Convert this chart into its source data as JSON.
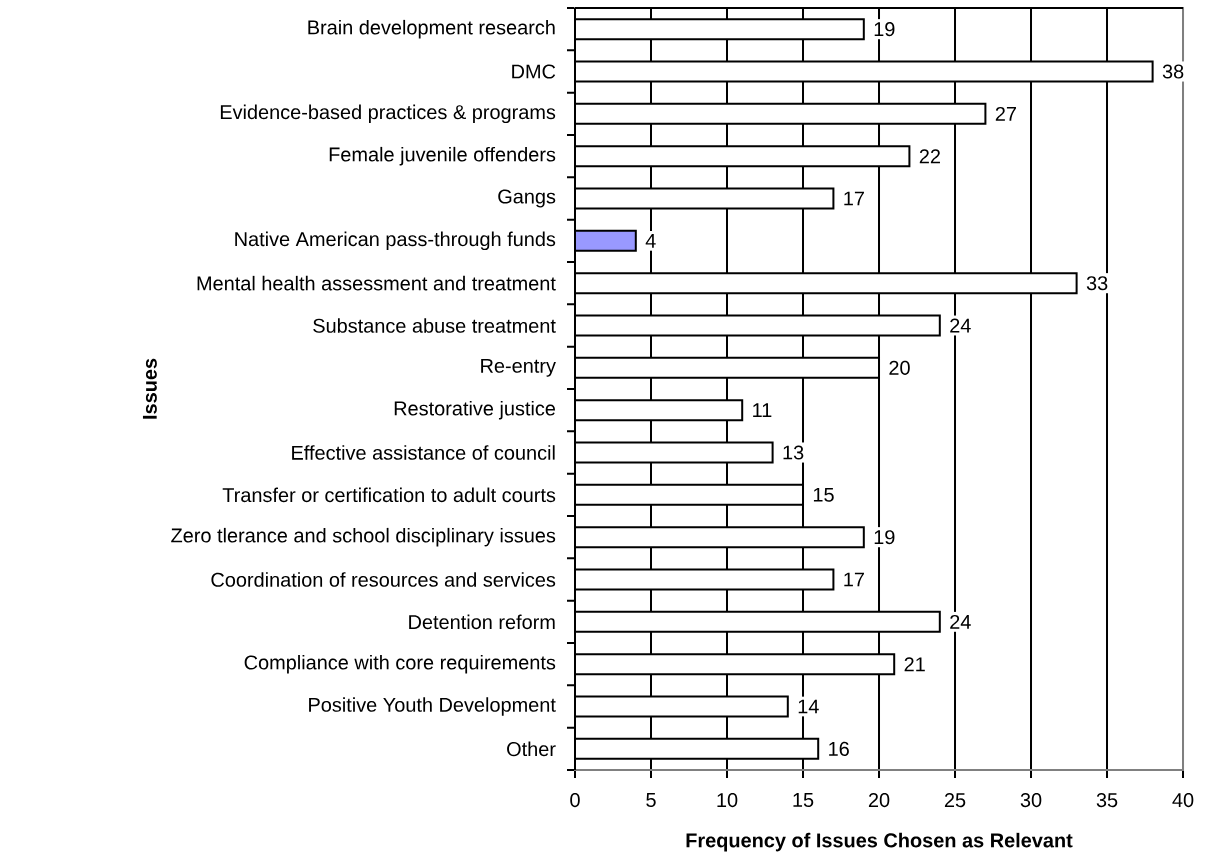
{
  "chart_data": {
    "type": "bar",
    "orientation": "horizontal",
    "xlabel": "Frequency of Issues Chosen as Relevant",
    "ylabel": "Issues",
    "categories": [
      "Brain development research",
      "DMC",
      "Evidence-based practices & programs",
      "Female juvenile offenders",
      "Gangs",
      "Native American pass-through funds",
      "Mental health assessment and treatment",
      "Substance abuse treatment",
      "Re-entry",
      "Restorative justice",
      "Effective assistance of council",
      "Transfer or certification to adult courts",
      "Zero tlerance and school disciplinary issues",
      "Coordination of resources and services",
      "Detention reform",
      "Compliance with core requirements",
      "Positive Youth Development",
      "Other"
    ],
    "values": [
      19,
      38,
      27,
      22,
      17,
      4,
      33,
      24,
      20,
      11,
      13,
      15,
      19,
      17,
      24,
      21,
      14,
      16
    ],
    "colors": [
      "#ffffff",
      "#ffffff",
      "#ffffff",
      "#ffffff",
      "#ffffff",
      "#9999ff",
      "#ffffff",
      "#ffffff",
      "#ffffff",
      "#ffffff",
      "#ffffff",
      "#ffffff",
      "#ffffff",
      "#ffffff",
      "#ffffff",
      "#ffffff",
      "#ffffff",
      "#ffffff"
    ],
    "xlim": [
      0,
      40
    ],
    "xticks": [
      0,
      5,
      10,
      15,
      20,
      25,
      30,
      35,
      40
    ],
    "grid": "x",
    "data_labels": true
  }
}
